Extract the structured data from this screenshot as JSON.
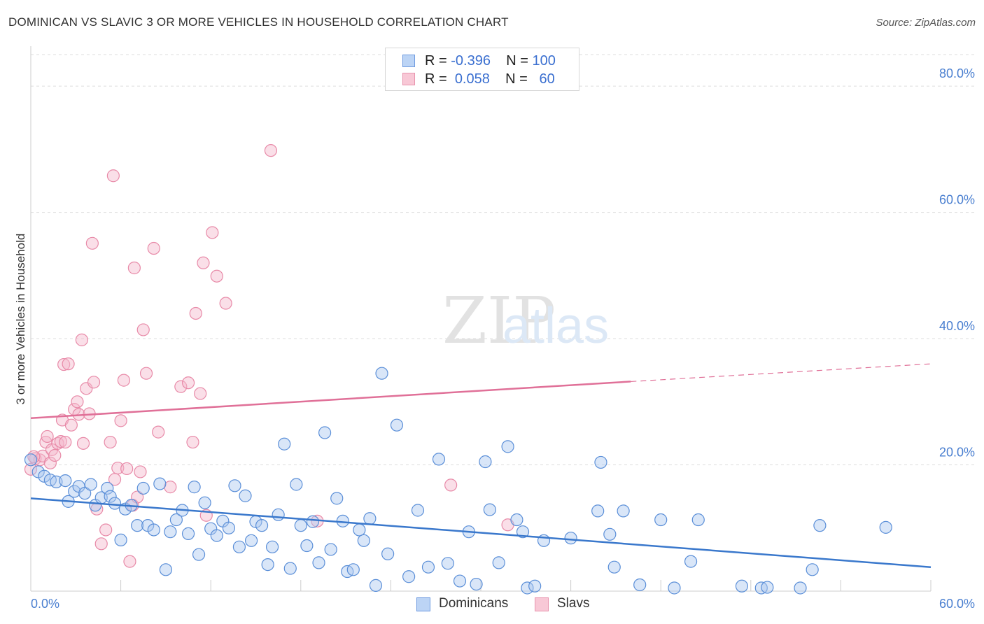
{
  "title": "DOMINICAN VS SLAVIC 3 OR MORE VEHICLES IN HOUSEHOLD CORRELATION CHART",
  "source": "Source: ZipAtlas.com",
  "watermark": {
    "zip": "ZIP",
    "atlas": "atlas"
  },
  "legend": {
    "rows": [
      {
        "r_label": "R =",
        "r_value": "-0.396",
        "n_label": "N =",
        "n_value": "100"
      },
      {
        "r_label": "R =",
        "r_value": "0.058",
        "n_label": "N =",
        "n_value": "60"
      }
    ]
  },
  "colors": {
    "dominicans_fill": "#aac8f0",
    "dominicans_stroke": "#5b8fd8",
    "dominicans_line": "#3a78cc",
    "slavs_fill": "#f5b8cb",
    "slavs_stroke": "#e88aa8",
    "slavs_line": "#e07098",
    "tick": "#4a7fd0",
    "grid": "#dddddd"
  },
  "chart_data": {
    "type": "scatter",
    "ylabel": "3 or more Vehicles in Household",
    "xlim": [
      0,
      60
    ],
    "ylim": [
      0,
      85
    ],
    "x_ticks": [
      "0.0%",
      "60.0%"
    ],
    "y_ticks": [
      {
        "value": 20,
        "label": "20.0%"
      },
      {
        "value": 40,
        "label": "40.0%"
      },
      {
        "value": 60,
        "label": "60.0%"
      },
      {
        "value": 80,
        "label": "80.0%"
      }
    ],
    "grid": true,
    "legend_position": "bottom",
    "series": [
      {
        "name": "Dominicans",
        "trend": {
          "x0": 0,
          "y0": 14.7,
          "x1": 60,
          "y1": 3.8
        },
        "points": [
          [
            0,
            20.8
          ],
          [
            0.5,
            18.9
          ],
          [
            0.9,
            18.2
          ],
          [
            1.3,
            17.6
          ],
          [
            1.7,
            17.3
          ],
          [
            2.3,
            17.5
          ],
          [
            2.5,
            14.2
          ],
          [
            2.9,
            15.8
          ],
          [
            3.2,
            16.6
          ],
          [
            3.6,
            15.5
          ],
          [
            4.0,
            16.9
          ],
          [
            4.3,
            13.6
          ],
          [
            4.7,
            14.8
          ],
          [
            5.1,
            16.3
          ],
          [
            5.3,
            15.0
          ],
          [
            5.6,
            13.9
          ],
          [
            6.0,
            8.1
          ],
          [
            6.3,
            13.0
          ],
          [
            6.7,
            13.6
          ],
          [
            7.1,
            10.4
          ],
          [
            7.5,
            16.3
          ],
          [
            7.8,
            10.4
          ],
          [
            8.2,
            9.7
          ],
          [
            8.6,
            17.0
          ],
          [
            9.0,
            3.4
          ],
          [
            9.3,
            9.4
          ],
          [
            9.7,
            11.3
          ],
          [
            10.1,
            12.8
          ],
          [
            10.5,
            9.1
          ],
          [
            10.9,
            16.5
          ],
          [
            11.2,
            5.8
          ],
          [
            11.6,
            14.0
          ],
          [
            12.0,
            9.9
          ],
          [
            12.4,
            8.8
          ],
          [
            12.8,
            11.1
          ],
          [
            13.2,
            10.0
          ],
          [
            13.6,
            16.7
          ],
          [
            13.9,
            7.0
          ],
          [
            14.3,
            15.1
          ],
          [
            14.7,
            8.0
          ],
          [
            15.0,
            11.0
          ],
          [
            15.4,
            10.4
          ],
          [
            15.8,
            4.2
          ],
          [
            16.1,
            7.0
          ],
          [
            16.5,
            12.1
          ],
          [
            16.9,
            23.3
          ],
          [
            17.3,
            3.6
          ],
          [
            17.7,
            16.9
          ],
          [
            18.0,
            10.4
          ],
          [
            18.4,
            7.2
          ],
          [
            18.8,
            11.0
          ],
          [
            19.2,
            4.5
          ],
          [
            19.6,
            25.1
          ],
          [
            20.0,
            6.6
          ],
          [
            20.4,
            14.7
          ],
          [
            20.8,
            11.1
          ],
          [
            21.1,
            3.1
          ],
          [
            21.5,
            3.4
          ],
          [
            21.9,
            9.7
          ],
          [
            22.2,
            8.0
          ],
          [
            22.6,
            11.5
          ],
          [
            23.0,
            0.9
          ],
          [
            23.4,
            34.5
          ],
          [
            23.8,
            5.9
          ],
          [
            24.4,
            26.3
          ],
          [
            25.2,
            2.3
          ],
          [
            25.8,
            12.8
          ],
          [
            26.5,
            3.8
          ],
          [
            27.2,
            20.9
          ],
          [
            27.8,
            4.4
          ],
          [
            28.6,
            1.6
          ],
          [
            29.2,
            9.4
          ],
          [
            29.7,
            1.1
          ],
          [
            30.3,
            20.5
          ],
          [
            30.6,
            12.9
          ],
          [
            31.2,
            4.5
          ],
          [
            31.8,
            22.9
          ],
          [
            32.4,
            11.3
          ],
          [
            32.8,
            9.4
          ],
          [
            33.1,
            0.5
          ],
          [
            33.6,
            0.8
          ],
          [
            34.2,
            8.0
          ],
          [
            36.0,
            8.4
          ],
          [
            37.8,
            12.7
          ],
          [
            38.0,
            20.4
          ],
          [
            38.6,
            9.0
          ],
          [
            38.9,
            3.8
          ],
          [
            39.5,
            12.7
          ],
          [
            40.6,
            1.0
          ],
          [
            42.0,
            11.3
          ],
          [
            42.9,
            0.5
          ],
          [
            44.0,
            4.7
          ],
          [
            44.5,
            11.3
          ],
          [
            47.4,
            0.8
          ],
          [
            48.7,
            0.5
          ],
          [
            49.1,
            0.6
          ],
          [
            51.3,
            0.5
          ],
          [
            52.1,
            3.4
          ],
          [
            52.6,
            10.4
          ],
          [
            57.0,
            10.1
          ]
        ]
      },
      {
        "name": "Slavs",
        "trend": {
          "x0": 0,
          "y0": 27.4,
          "x1": 40,
          "y1": 33.2,
          "x1_dashed": 60,
          "y1_dashed": 36.0
        },
        "points": [
          [
            0,
            19.3
          ],
          [
            0.3,
            21.0
          ],
          [
            0.6,
            20.8
          ],
          [
            0.8,
            21.4
          ],
          [
            1.0,
            23.6
          ],
          [
            1.1,
            24.5
          ],
          [
            1.3,
            20.3
          ],
          [
            1.4,
            22.4
          ],
          [
            1.6,
            21.5
          ],
          [
            1.8,
            23.4
          ],
          [
            2.0,
            23.7
          ],
          [
            2.1,
            27.1
          ],
          [
            2.2,
            35.9
          ],
          [
            2.3,
            23.6
          ],
          [
            2.5,
            36.0
          ],
          [
            2.7,
            26.3
          ],
          [
            2.9,
            28.8
          ],
          [
            3.1,
            30.0
          ],
          [
            3.2,
            28.0
          ],
          [
            3.4,
            39.8
          ],
          [
            3.5,
            23.4
          ],
          [
            3.7,
            32.1
          ],
          [
            3.9,
            28.1
          ],
          [
            4.1,
            55.1
          ],
          [
            4.2,
            33.1
          ],
          [
            4.4,
            13.0
          ],
          [
            4.7,
            7.5
          ],
          [
            5.0,
            9.7
          ],
          [
            5.3,
            23.6
          ],
          [
            5.5,
            65.8
          ],
          [
            5.6,
            17.7
          ],
          [
            5.8,
            19.5
          ],
          [
            6.0,
            27.0
          ],
          [
            6.2,
            33.4
          ],
          [
            6.4,
            19.4
          ],
          [
            6.6,
            4.7
          ],
          [
            6.8,
            13.6
          ],
          [
            6.9,
            51.2
          ],
          [
            7.1,
            14.9
          ],
          [
            7.3,
            18.9
          ],
          [
            7.5,
            41.4
          ],
          [
            7.7,
            34.5
          ],
          [
            8.2,
            54.3
          ],
          [
            8.5,
            25.2
          ],
          [
            9.3,
            16.5
          ],
          [
            10.0,
            32.4
          ],
          [
            10.5,
            33.0
          ],
          [
            10.8,
            23.6
          ],
          [
            11.0,
            44.0
          ],
          [
            11.3,
            31.3
          ],
          [
            11.5,
            52.0
          ],
          [
            11.7,
            12.0
          ],
          [
            12.1,
            56.8
          ],
          [
            12.4,
            49.9
          ],
          [
            13.0,
            45.6
          ],
          [
            16.0,
            69.8
          ],
          [
            19.1,
            11.1
          ],
          [
            28.0,
            16.8
          ],
          [
            31.8,
            10.5
          ],
          [
            0.2,
            21.3
          ]
        ]
      }
    ]
  },
  "bottom_legend": {
    "items": [
      {
        "label": "Dominicans"
      },
      {
        "label": "Slavs"
      }
    ]
  }
}
